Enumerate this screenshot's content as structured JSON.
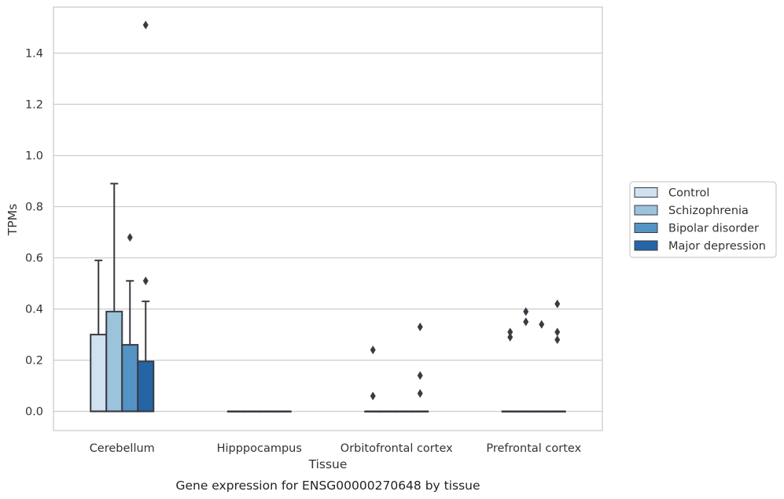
{
  "chart_data": {
    "type": "box",
    "xlabel": "Tissue",
    "ylabel": "TPMs",
    "caption": "Gene expression for ENSG00000270648 by tissue",
    "ylim": [
      -0.075,
      1.58
    ],
    "yticks": [
      "0.0",
      "0.2",
      "0.4",
      "0.6",
      "0.8",
      "1.0",
      "1.2",
      "1.4"
    ],
    "grid": true,
    "legend_position": "right",
    "categories": [
      "Cerebellum",
      "Hipppocampus",
      "Orbitofrontal cortex",
      "Prefrontal cortex"
    ],
    "colors": {
      "Control": "#d0e1f0",
      "Schizophrenia": "#9cc3dc",
      "Bipolar disorder": "#5394c4",
      "Major depression": "#2565a5"
    },
    "series": [
      {
        "name": "Control",
        "boxes": [
          {
            "whislo": 0.0,
            "q1": 0.0,
            "med": 0.0,
            "q3": 0.3,
            "whishi": 0.59,
            "fliers": []
          },
          {
            "whislo": 0.0,
            "q1": 0.0,
            "med": 0.0,
            "q3": 0.0,
            "whishi": 0.0,
            "fliers": []
          },
          {
            "whislo": 0.0,
            "q1": 0.0,
            "med": 0.0,
            "q3": 0.0,
            "whishi": 0.0,
            "fliers": [
              0.06,
              0.24
            ]
          },
          {
            "whislo": 0.0,
            "q1": 0.0,
            "med": 0.0,
            "q3": 0.0,
            "whishi": 0.0,
            "fliers": [
              0.29,
              0.31
            ]
          }
        ]
      },
      {
        "name": "Schizophrenia",
        "boxes": [
          {
            "whislo": 0.0,
            "q1": 0.0,
            "med": 0.0,
            "q3": 0.39,
            "whishi": 0.89,
            "fliers": []
          },
          {
            "whislo": 0.0,
            "q1": 0.0,
            "med": 0.0,
            "q3": 0.0,
            "whishi": 0.0,
            "fliers": []
          },
          {
            "whislo": 0.0,
            "q1": 0.0,
            "med": 0.0,
            "q3": 0.0,
            "whishi": 0.0,
            "fliers": []
          },
          {
            "whislo": 0.0,
            "q1": 0.0,
            "med": 0.0,
            "q3": 0.0,
            "whishi": 0.0,
            "fliers": [
              0.35,
              0.39
            ]
          }
        ]
      },
      {
        "name": "Bipolar disorder",
        "boxes": [
          {
            "whislo": 0.0,
            "q1": 0.0,
            "med": 0.0,
            "q3": 0.26,
            "whishi": 0.51,
            "fliers": [
              0.68
            ]
          },
          {
            "whislo": 0.0,
            "q1": 0.0,
            "med": 0.0,
            "q3": 0.0,
            "whishi": 0.0,
            "fliers": []
          },
          {
            "whislo": 0.0,
            "q1": 0.0,
            "med": 0.0,
            "q3": 0.0,
            "whishi": 0.0,
            "fliers": []
          },
          {
            "whislo": 0.0,
            "q1": 0.0,
            "med": 0.0,
            "q3": 0.0,
            "whishi": 0.0,
            "fliers": [
              0.34
            ]
          }
        ]
      },
      {
        "name": "Major depression",
        "boxes": [
          {
            "whislo": 0.0,
            "q1": 0.0,
            "med": 0.0,
            "q3": 0.195,
            "whishi": 0.43,
            "fliers": [
              0.51,
              1.51
            ]
          },
          {
            "whislo": 0.0,
            "q1": 0.0,
            "med": 0.0,
            "q3": 0.0,
            "whishi": 0.0,
            "fliers": []
          },
          {
            "whislo": 0.0,
            "q1": 0.0,
            "med": 0.0,
            "q3": 0.0,
            "whishi": 0.0,
            "fliers": [
              0.07,
              0.14,
              0.33
            ]
          },
          {
            "whislo": 0.0,
            "q1": 0.0,
            "med": 0.0,
            "q3": 0.0,
            "whishi": 0.0,
            "fliers": [
              0.28,
              0.31,
              0.42
            ]
          }
        ]
      }
    ]
  }
}
